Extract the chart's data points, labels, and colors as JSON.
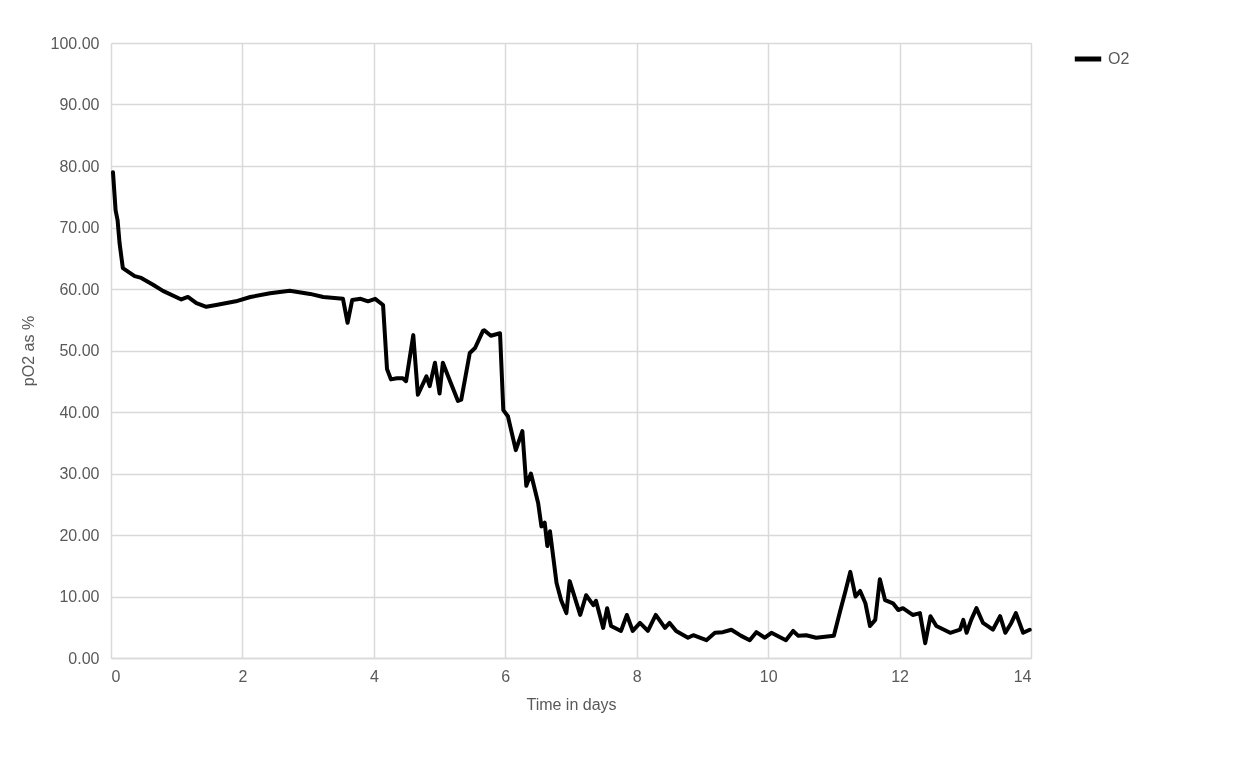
{
  "chart_data": {
    "type": "line",
    "xlabel": "Time in days",
    "ylabel": "pO2 as %",
    "xlim": [
      0,
      14
    ],
    "xticks": [
      0,
      2,
      4,
      6,
      8,
      10,
      12,
      14
    ],
    "ylim": [
      0,
      100
    ],
    "yticks": [
      {
        "value": 0,
        "label": "0.00"
      },
      {
        "value": 10,
        "label": "10.00"
      },
      {
        "value": 20,
        "label": "20.00"
      },
      {
        "value": 30,
        "label": "30.00"
      },
      {
        "value": 40,
        "label": "40.00"
      },
      {
        "value": 50,
        "label": "50.00"
      },
      {
        "value": 60,
        "label": "60.00"
      },
      {
        "value": 70,
        "label": "70.00"
      },
      {
        "value": 80,
        "label": "80.00"
      },
      {
        "value": 90,
        "label": "90.00"
      },
      {
        "value": 100,
        "label": "100.00"
      }
    ],
    "grid": true,
    "legend": "right",
    "marker": "none",
    "line_style": "solid",
    "x": [
      0.03,
      0.07,
      0.1,
      0.13,
      0.18,
      0.36,
      0.46,
      0.64,
      0.79,
      1.07,
      1.17,
      1.3,
      1.45,
      1.6,
      1.9,
      2.12,
      2.42,
      2.72,
      3.03,
      3.23,
      3.53,
      3.6,
      3.67,
      3.8,
      3.91,
      4.02,
      4.14,
      4.2,
      4.26,
      4.35,
      4.44,
      4.49,
      4.6,
      4.67,
      4.8,
      4.85,
      4.93,
      5.0,
      5.05,
      5.13,
      5.28,
      5.33,
      5.39,
      5.46,
      5.54,
      5.66,
      5.68,
      5.78,
      5.92,
      5.97,
      6.04,
      6.16,
      6.26,
      6.32,
      6.39,
      6.5,
      6.55,
      6.6,
      6.64,
      6.68,
      6.78,
      6.85,
      6.93,
      6.98,
      7.14,
      7.23,
      7.34,
      7.38,
      7.49,
      7.55,
      7.61,
      7.76,
      7.85,
      7.94,
      8.05,
      8.17,
      8.29,
      8.43,
      8.5,
      8.6,
      8.78,
      8.86,
      9.06,
      9.19,
      9.31,
      9.44,
      9.59,
      9.72,
      9.82,
      9.95,
      10.05,
      10.27,
      10.38,
      10.46,
      10.58,
      10.73,
      11.0,
      11.1,
      11.17,
      11.25,
      11.33,
      11.4,
      11.48,
      11.55,
      11.63,
      11.7,
      11.78,
      11.9,
      11.98,
      12.05,
      12.2,
      12.31,
      12.39,
      12.47,
      12.56,
      12.77,
      12.92,
      12.97,
      13.02,
      13.09,
      13.17,
      13.27,
      13.42,
      13.53,
      13.61,
      13.7,
      13.77,
      13.88,
      13.98
    ],
    "series": [
      {
        "name": "O2",
        "color": "#000000",
        "values": [
          79,
          72.8,
          71.2,
          67.5,
          63.4,
          62.1,
          61.8,
          60.7,
          59.7,
          58.3,
          58.7,
          57.7,
          57.1,
          57.4,
          58,
          58.7,
          59.3,
          59.7,
          59.2,
          58.7,
          58.4,
          54.5,
          58.2,
          58.4,
          58,
          58.4,
          57.4,
          47,
          45.3,
          45.5,
          45.5,
          45,
          52.5,
          42.8,
          45.8,
          44.2,
          48,
          43,
          48,
          45.8,
          41.8,
          42,
          45.5,
          49.6,
          50.4,
          53.2,
          53.3,
          52.4,
          52.8,
          40.3,
          39.3,
          33.8,
          36.9,
          28,
          30,
          25.2,
          21.4,
          22,
          18.2,
          20.6,
          12.2,
          9.4,
          7.3,
          12.5,
          7,
          10.2,
          8.6,
          9.3,
          4.9,
          8.1,
          5.2,
          4.4,
          7,
          4.4,
          5.7,
          4.4,
          7,
          4.9,
          5.7,
          4.4,
          3.3,
          3.7,
          2.9,
          4.1,
          4.2,
          4.6,
          3.6,
          2.9,
          4.2,
          3.3,
          4.1,
          2.9,
          4.4,
          3.6,
          3.7,
          3.3,
          3.6,
          7.8,
          10.6,
          14,
          10,
          10.9,
          8.9,
          5.2,
          6.2,
          12.8,
          9.4,
          8.9,
          7.8,
          8.1,
          7,
          7.3,
          2.4,
          6.8,
          5.2,
          4.1,
          4.6,
          6.2,
          4.1,
          6.2,
          8.1,
          5.7,
          4.6,
          6.8,
          4.1,
          5.7,
          7.3,
          4.1,
          4.6
        ]
      }
    ]
  }
}
